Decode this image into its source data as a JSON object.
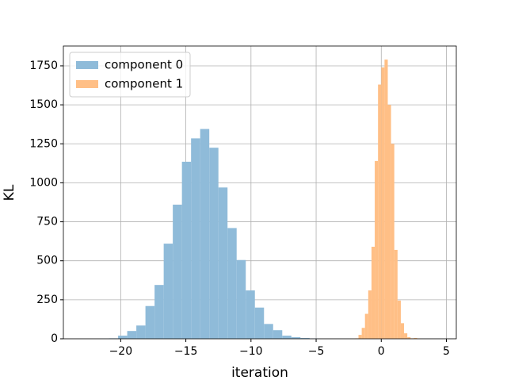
{
  "chart_data": {
    "type": "histogram",
    "xlabel": "iteration",
    "ylabel": "KL",
    "xlim": [
      -24.4,
      5.76
    ],
    "ylim": [
      0,
      1877
    ],
    "xticks": [
      {
        "value": -20,
        "label": "−20"
      },
      {
        "value": -15,
        "label": "−15"
      },
      {
        "value": -10,
        "label": "−10"
      },
      {
        "value": -5,
        "label": "−5"
      },
      0,
      5
    ],
    "yticks": [
      0,
      250,
      500,
      750,
      1000,
      1250,
      1500,
      1750
    ],
    "grid": true,
    "legend": "upper-left",
    "series": [
      {
        "name": "component 0",
        "color": "#8fbbd9",
        "bins": [
          -21.6,
          -20.9,
          -20.2,
          -19.5,
          -18.8,
          -18.1,
          -17.4,
          -16.7,
          -16.0,
          -15.3,
          -14.6,
          -13.9,
          -13.2,
          -12.5,
          -11.8,
          -11.1,
          -10.4,
          -9.7,
          -9.0,
          -8.3,
          -7.6,
          -6.9,
          -6.2,
          -5.5,
          -4.8
        ],
        "values": [
          1,
          3,
          20,
          50,
          85,
          210,
          345,
          610,
          860,
          1135,
          1285,
          1345,
          1225,
          970,
          710,
          505,
          310,
          200,
          95,
          55,
          20,
          10,
          5,
          2
        ]
      },
      {
        "name": "component 1",
        "color": "#ffbf86",
        "bins": [
          -2.0,
          -1.75,
          -1.5,
          -1.25,
          -1.0,
          -0.75,
          -0.5,
          -0.25,
          0,
          0.25,
          0.5,
          0.75,
          1.0,
          1.25,
          1.5,
          1.75,
          2.0,
          2.25,
          2.5,
          2.75,
          3.0
        ],
        "values": [
          3,
          25,
          70,
          160,
          310,
          590,
          1140,
          1630,
          1740,
          1790,
          1500,
          1250,
          570,
          245,
          100,
          35,
          10,
          3,
          5,
          2
        ]
      }
    ]
  }
}
